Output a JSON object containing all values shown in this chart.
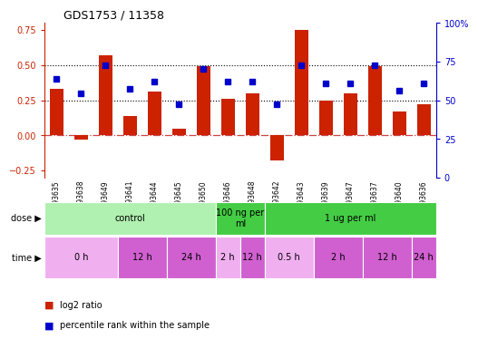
{
  "title": "GDS1753 / 11358",
  "samples": [
    "GSM93635",
    "GSM93638",
    "GSM93649",
    "GSM93641",
    "GSM93644",
    "GSM93645",
    "GSM93650",
    "GSM93646",
    "GSM93648",
    "GSM93642",
    "GSM93643",
    "GSM93639",
    "GSM93647",
    "GSM93637",
    "GSM93640",
    "GSM93636"
  ],
  "log2_ratio": [
    0.33,
    -0.03,
    0.57,
    0.14,
    0.31,
    0.05,
    0.49,
    0.26,
    0.3,
    -0.18,
    0.75,
    0.25,
    0.3,
    0.49,
    0.17,
    0.22
  ],
  "percentile_rank": [
    65,
    55,
    75,
    58,
    63,
    47,
    72,
    63,
    63,
    47,
    75,
    62,
    62,
    75,
    57,
    62
  ],
  "ylim_left": [
    -0.3,
    0.8
  ],
  "ylim_right": [
    0,
    100
  ],
  "yticks_left": [
    -0.25,
    0.0,
    0.25,
    0.5,
    0.75
  ],
  "yticks_right": [
    0,
    25,
    50,
    75,
    100
  ],
  "hlines": [
    0.25,
    0.5
  ],
  "dose_groups": [
    {
      "label": "control",
      "start": 0,
      "end": 7,
      "color": "#b0f0b0"
    },
    {
      "label": "100 ng per\nml",
      "start": 7,
      "end": 9,
      "color": "#44cc44"
    },
    {
      "label": "1 ug per ml",
      "start": 9,
      "end": 16,
      "color": "#44cc44"
    }
  ],
  "time_groups": [
    {
      "label": "0 h",
      "start": 0,
      "end": 3,
      "color": "#f0b0f0"
    },
    {
      "label": "12 h",
      "start": 3,
      "end": 5,
      "color": "#d060d0"
    },
    {
      "label": "24 h",
      "start": 5,
      "end": 7,
      "color": "#d060d0"
    },
    {
      "label": "2 h",
      "start": 7,
      "end": 8,
      "color": "#f0b0f0"
    },
    {
      "label": "12 h",
      "start": 8,
      "end": 9,
      "color": "#d060d0"
    },
    {
      "label": "0.5 h",
      "start": 9,
      "end": 11,
      "color": "#f0b0f0"
    },
    {
      "label": "2 h",
      "start": 11,
      "end": 13,
      "color": "#d060d0"
    },
    {
      "label": "12 h",
      "start": 13,
      "end": 15,
      "color": "#d060d0"
    },
    {
      "label": "24 h",
      "start": 15,
      "end": 16,
      "color": "#d060d0"
    }
  ],
  "bar_color": "#cc2200",
  "dot_color": "#0000cc",
  "zero_line_color": "#cc4444",
  "bg_color": "#ffffff",
  "legend_items": [
    {
      "label": "log2 ratio",
      "color": "#cc2200"
    },
    {
      "label": "percentile rank within the sample",
      "color": "#0000cc"
    }
  ]
}
